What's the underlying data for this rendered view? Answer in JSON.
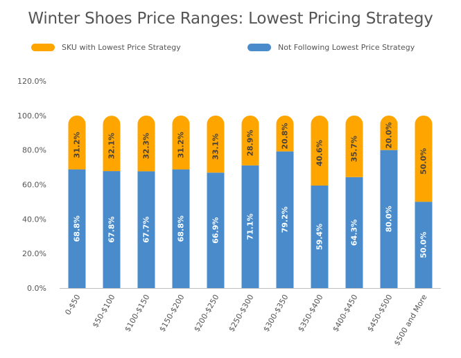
{
  "chart_data": {
    "type": "bar",
    "stacked": true,
    "title": "Winter Shoes Price Ranges: Lowest Pricing Strategy",
    "categories": [
      "0-$50",
      "$50-$100",
      "$100-$150",
      "$150-$200",
      "$200-$250",
      "$250-$300",
      "$300-$350",
      "$350-$400",
      "$400-$450",
      "$450-$500",
      "$500 and More"
    ],
    "series": [
      {
        "name": "Not Following Lowest Price Strategy",
        "color": "#4a8bcc",
        "values": [
          68.8,
          67.8,
          67.7,
          68.8,
          66.9,
          71.1,
          79.2,
          59.4,
          64.3,
          80.0,
          50.0
        ],
        "labels": [
          "68.8%",
          "67.8%",
          "67.7%",
          "68.8%",
          "66.9%",
          "71.1%",
          "79.2%",
          "59.4%",
          "64.3%",
          "80.0%",
          "50.0%"
        ],
        "label_color": "#ffffff"
      },
      {
        "name": "SKU with Lowest Price Strategy",
        "color": "#ffa500",
        "values": [
          31.2,
          32.1,
          32.3,
          31.2,
          33.1,
          28.9,
          20.8,
          40.6,
          35.7,
          20.0,
          50.0
        ],
        "labels": [
          "31.2%",
          "32.1%",
          "32.3%",
          "31.2%",
          "33.1%",
          "28.9%",
          "20.8%",
          "40.6%",
          "35.7%",
          "20.0%",
          "50.0%"
        ],
        "label_color": "#444444"
      }
    ],
    "legend_order": [
      "SKU with Lowest Price Strategy",
      "Not Following Lowest Price Strategy"
    ],
    "legend_position": "top",
    "ylim": [
      0,
      120
    ],
    "yticks": [
      0,
      20,
      40,
      60,
      80,
      100,
      120
    ],
    "ytick_labels": [
      "0.0%",
      "20.0%",
      "40.0%",
      "60.0%",
      "80.0%",
      "100.0%",
      "120.0%"
    ],
    "grid": false,
    "xlabel": "",
    "ylabel": ""
  }
}
